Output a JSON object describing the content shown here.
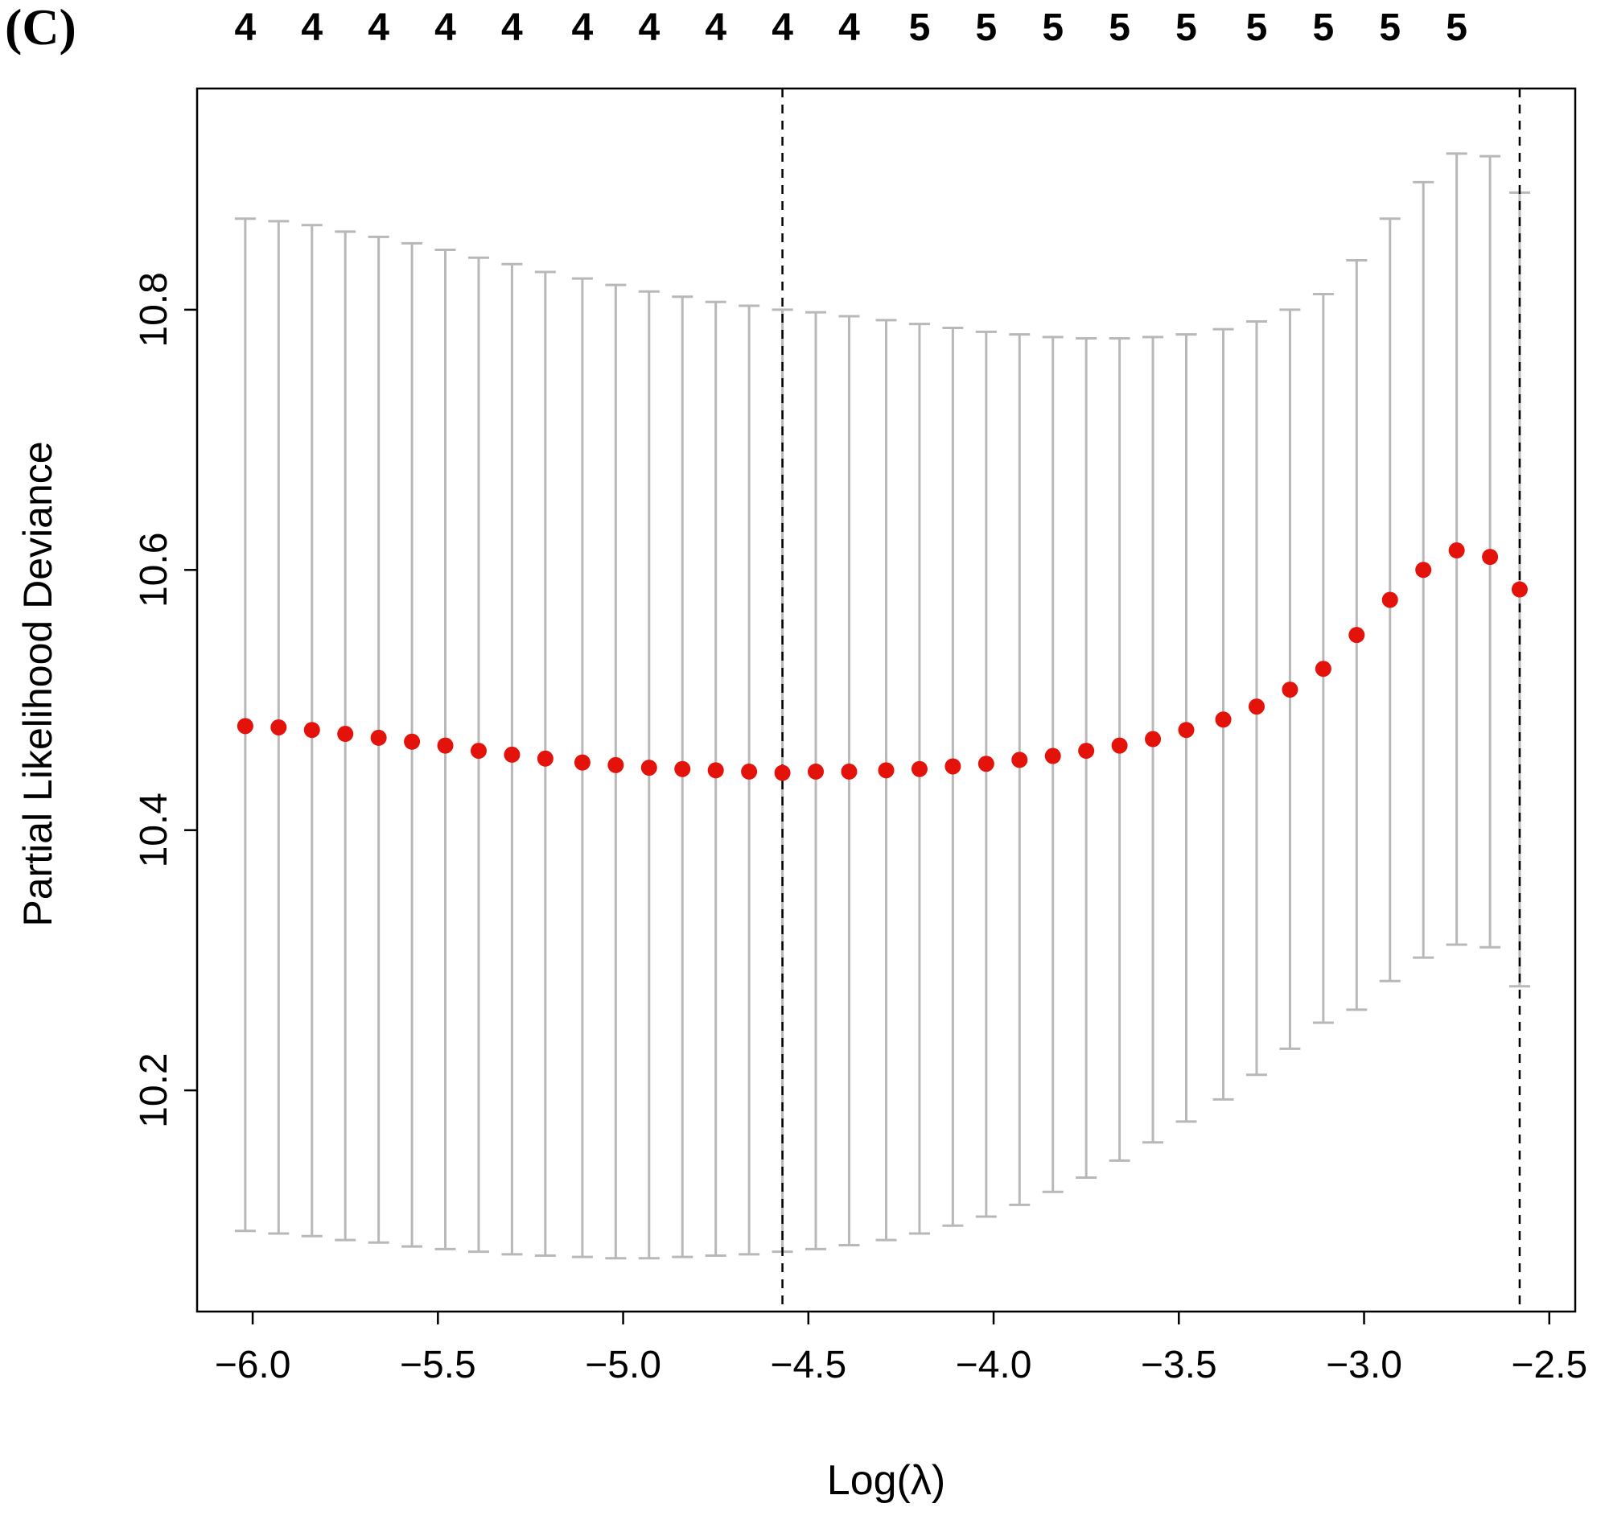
{
  "panel_label": "(C)",
  "chart_data": {
    "type": "scatter",
    "title": "",
    "xlabel": "Log(λ)",
    "ylabel": "Partial Likelihood Deviance",
    "xlim": [
      -6.15,
      -2.43
    ],
    "ylim": [
      10.03,
      10.97
    ],
    "x_ticks": [
      -6.0,
      -5.5,
      -5.0,
      -4.5,
      -4.0,
      -3.5,
      -3.0,
      -2.5
    ],
    "x_tick_labels": [
      "−6.0",
      "−5.5",
      "−5.0",
      "−4.5",
      "−4.0",
      "−3.5",
      "−3.0",
      "−2.5"
    ],
    "y_ticks": [
      10.2,
      10.4,
      10.6,
      10.8
    ],
    "y_tick_labels": [
      "10.2",
      "10.4",
      "10.6",
      "10.8"
    ],
    "grid": false,
    "legend": "none",
    "vlines": [
      -4.57,
      -2.58
    ],
    "vline_style": "dashed",
    "top_axis": {
      "meaning": "number of nonzero coefficients",
      "x": [
        -6.02,
        -5.84,
        -5.66,
        -5.48,
        -5.3,
        -5.11,
        -4.93,
        -4.75,
        -4.57,
        -4.39,
        -4.2,
        -4.02,
        -3.84,
        -3.66,
        -3.48,
        -3.29,
        -3.11,
        -2.93,
        -2.75
      ],
      "labels": [
        "4",
        "4",
        "4",
        "4",
        "4",
        "4",
        "4",
        "4",
        "4",
        "4",
        "5",
        "5",
        "5",
        "5",
        "5",
        "5",
        "5",
        "5",
        "5"
      ]
    },
    "series": [
      {
        "name": "cv-partial-likelihood-deviance",
        "x": [
          -6.02,
          -5.93,
          -5.84,
          -5.75,
          -5.66,
          -5.57,
          -5.48,
          -5.39,
          -5.3,
          -5.21,
          -5.11,
          -5.02,
          -4.93,
          -4.84,
          -4.75,
          -4.66,
          -4.57,
          -4.48,
          -4.39,
          -4.29,
          -4.2,
          -4.11,
          -4.02,
          -3.93,
          -3.84,
          -3.75,
          -3.66,
          -3.57,
          -3.48,
          -3.38,
          -3.29,
          -3.2,
          -3.11,
          -3.02,
          -2.93,
          -2.84,
          -2.75,
          -2.66,
          -2.58
        ],
        "y": [
          10.48,
          10.479,
          10.477,
          10.474,
          10.471,
          10.468,
          10.465,
          10.461,
          10.458,
          10.455,
          10.452,
          10.45,
          10.448,
          10.447,
          10.446,
          10.445,
          10.444,
          10.445,
          10.445,
          10.446,
          10.447,
          10.449,
          10.451,
          10.454,
          10.457,
          10.461,
          10.465,
          10.47,
          10.477,
          10.485,
          10.495,
          10.508,
          10.524,
          10.55,
          10.577,
          10.6,
          10.615,
          10.61,
          10.585
        ],
        "upper": [
          10.87,
          10.868,
          10.865,
          10.86,
          10.856,
          10.851,
          10.846,
          10.84,
          10.835,
          10.829,
          10.824,
          10.819,
          10.814,
          10.81,
          10.806,
          10.803,
          10.8,
          10.798,
          10.795,
          10.792,
          10.789,
          10.786,
          10.783,
          10.781,
          10.779,
          10.778,
          10.778,
          10.779,
          10.781,
          10.785,
          10.791,
          10.8,
          10.812,
          10.838,
          10.87,
          10.898,
          10.92,
          10.918,
          10.89
        ],
        "lower": [
          10.092,
          10.09,
          10.088,
          10.085,
          10.083,
          10.08,
          10.078,
          10.076,
          10.074,
          10.073,
          10.072,
          10.071,
          10.071,
          10.072,
          10.073,
          10.074,
          10.076,
          10.078,
          10.081,
          10.085,
          10.09,
          10.096,
          10.103,
          10.112,
          10.122,
          10.133,
          10.146,
          10.16,
          10.176,
          10.193,
          10.212,
          10.232,
          10.252,
          10.262,
          10.284,
          10.302,
          10.312,
          10.31,
          10.28
        ]
      }
    ],
    "colors": {
      "point": "#e3120b",
      "error_bar": "#b8b8b8",
      "vline": "#000000",
      "axis": "#000000",
      "background": "#ffffff"
    }
  }
}
